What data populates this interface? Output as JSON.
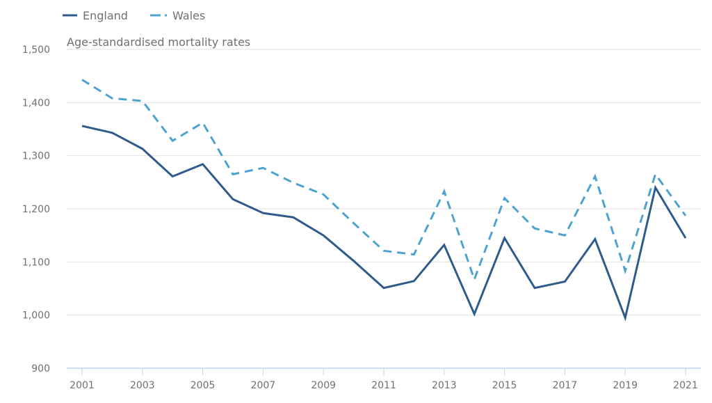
{
  "chart_data": {
    "type": "line",
    "title": "",
    "subtitle": "Age-standardised mortality rates",
    "xlabel": "",
    "ylabel": "Age-standardised mortality rates",
    "x": [
      2001,
      2002,
      2003,
      2004,
      2005,
      2006,
      2007,
      2008,
      2009,
      2010,
      2011,
      2012,
      2013,
      2014,
      2015,
      2016,
      2017,
      2018,
      2019,
      2020,
      2021
    ],
    "x_tick_labels": [
      "2001",
      "2003",
      "2005",
      "2007",
      "2009",
      "2011",
      "2013",
      "2015",
      "2017",
      "2019",
      "2021"
    ],
    "y_tick_labels": [
      "900",
      "1,000",
      "1,100",
      "1,200",
      "1,300",
      "1,400",
      "1,500"
    ],
    "y_ticks": [
      900,
      1000,
      1100,
      1200,
      1300,
      1400,
      1500
    ],
    "ylim": [
      900,
      1500
    ],
    "xlim": [
      2001,
      2021
    ],
    "grid": "horizontal",
    "legend_position": "top-left",
    "series": [
      {
        "name": "England",
        "style": "solid",
        "color": "#2e5b8c",
        "values": [
          1356,
          1343,
          1313,
          1261,
          1284,
          1218,
          1192,
          1184,
          1150,
          1102,
          1051,
          1064,
          1132,
          1002,
          1145,
          1051,
          1063,
          1143,
          995,
          1240,
          1145
        ]
      },
      {
        "name": "Wales",
        "style": "dashed",
        "color": "#4da3cf",
        "values": [
          1443,
          1408,
          1403,
          1328,
          1362,
          1265,
          1277,
          1249,
          1227,
          1173,
          1121,
          1114,
          1233,
          1067,
          1220,
          1163,
          1150,
          1261,
          1083,
          1265,
          1187
        ]
      }
    ]
  }
}
